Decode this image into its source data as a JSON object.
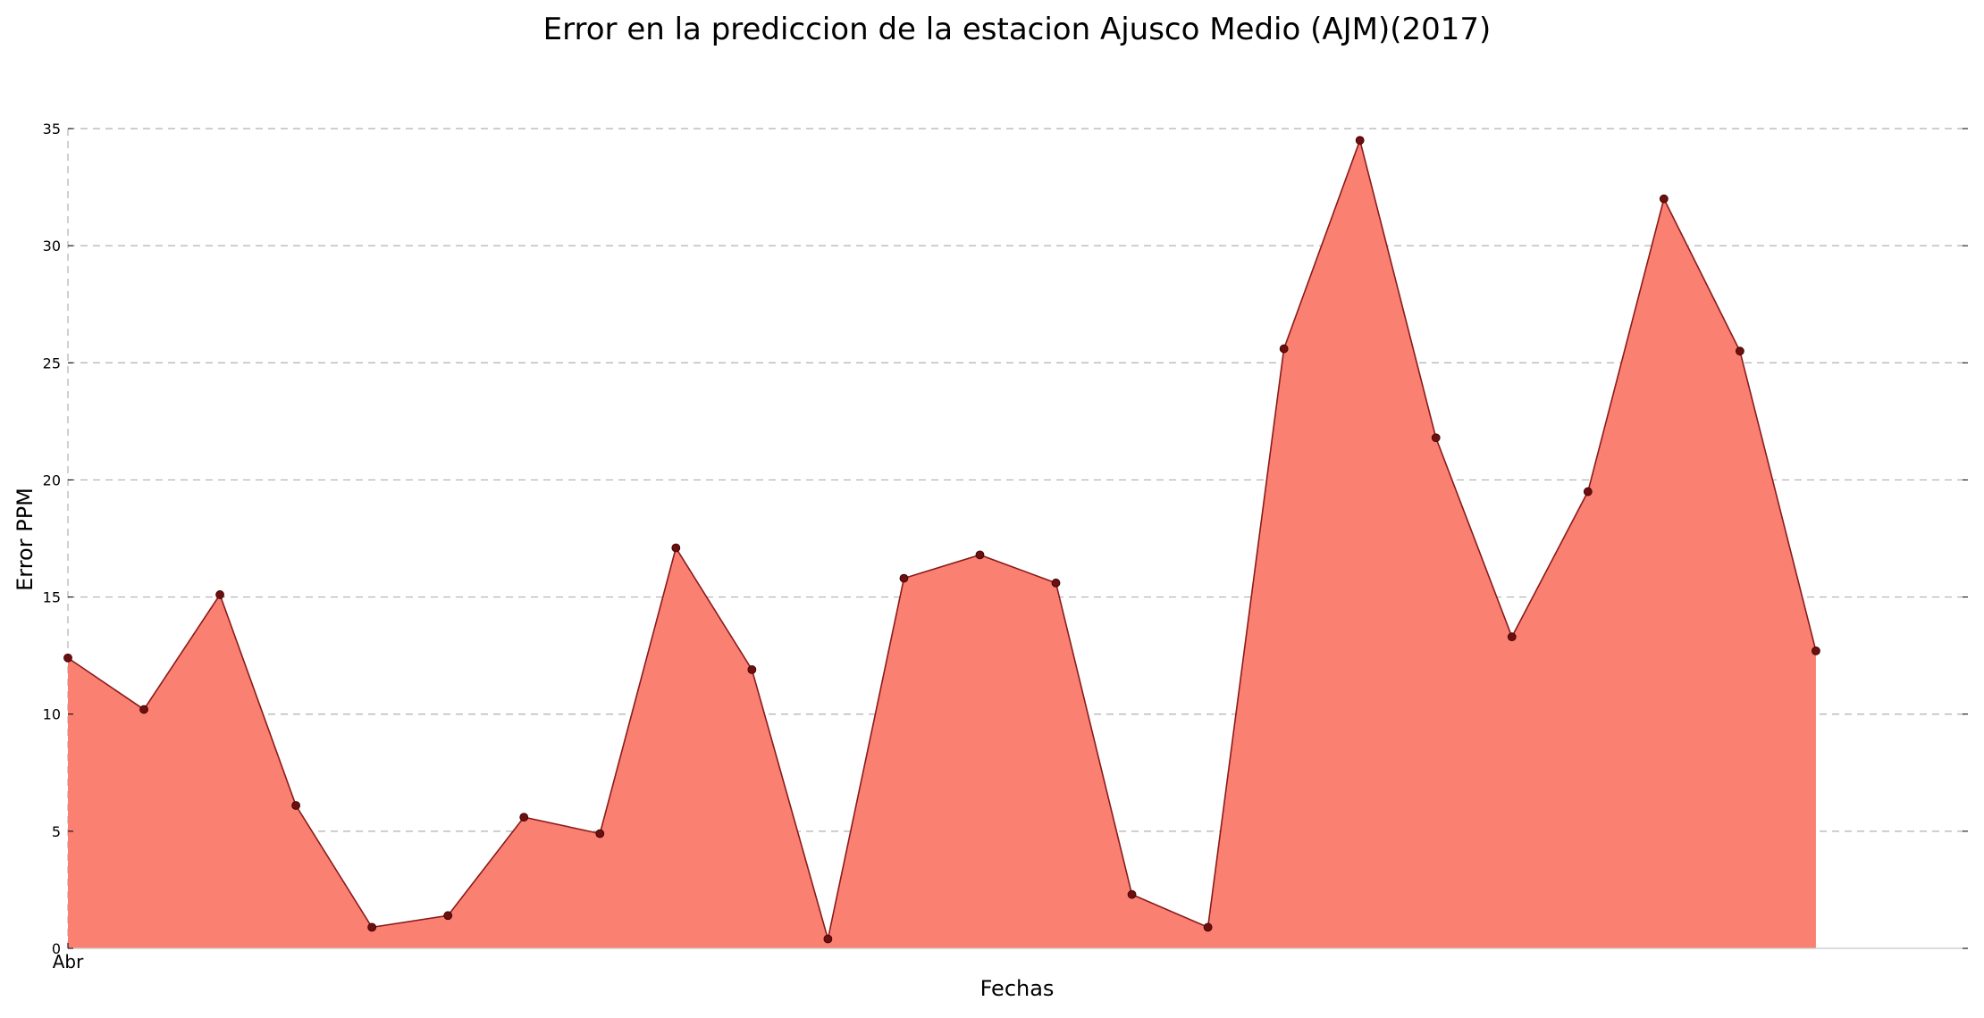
{
  "chart_data": {
    "type": "area",
    "title": "Error en la prediccion de la estacion Ajusco Medio (AJM)(2017)",
    "xlabel": "Fechas",
    "ylabel": "Error PPM",
    "ylim": [
      0,
      35
    ],
    "yticks": [
      0,
      5,
      10,
      15,
      20,
      25,
      30,
      35
    ],
    "xtick_labels": [
      "Abr"
    ],
    "grid": true,
    "colors": {
      "fill": "#fa8072",
      "line": "#8b1a1a",
      "marker": "#6b0f0f",
      "grid": "#b0b0b0"
    },
    "x": [
      0,
      1,
      2,
      3,
      4,
      5,
      6,
      7,
      8,
      9,
      10,
      11,
      12,
      13,
      14,
      15,
      16,
      17,
      18,
      19,
      20,
      21,
      22,
      23
    ],
    "xlim": [
      0,
      25
    ],
    "values": [
      12.4,
      10.2,
      15.1,
      6.1,
      0.9,
      1.4,
      5.6,
      4.9,
      17.1,
      11.9,
      0.4,
      15.8,
      16.8,
      15.6,
      2.3,
      0.9,
      25.6,
      34.5,
      21.8,
      13.3,
      19.5,
      32.0,
      25.5,
      12.7
    ]
  }
}
